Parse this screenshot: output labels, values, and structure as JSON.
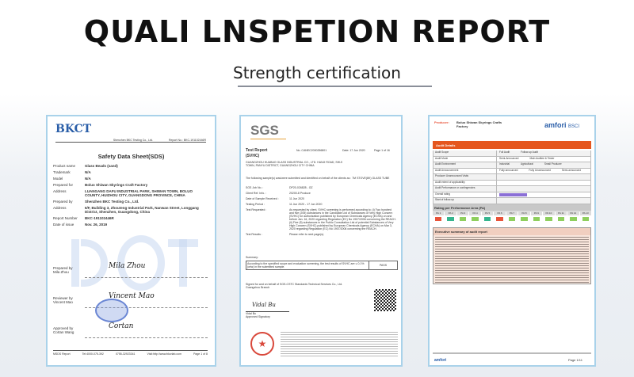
{
  "title": "QUALI LNSPETION REPORT",
  "subtitle": "Strength certification",
  "sds": {
    "logo": "BKCT",
    "header_company": "Shenzhen BKC Testing Co., Ltd.",
    "header_report": "Report No.: BKC-191102446R",
    "doc_title": "Safety Data Sheet(SDS)",
    "fields": [
      {
        "k": "Product name",
        "v": "Glass Beads (sand)"
      },
      {
        "k": "Trademark",
        "v": "N/A"
      },
      {
        "k": "Model",
        "v": "N/A"
      },
      {
        "k": "Prepared for",
        "v": "Boluo Shiwan Skyrings Craft Factory"
      },
      {
        "k": "Address",
        "v": "LUANGANG DAFU INDUSTRIAL PARK, SHIWAN TOWN, BOLUO COUNTY, HUIZHOU CITY, GUANGDONG PROVINCE, CHINA"
      },
      {
        "k": "Prepared by",
        "v": "Shenzhen BKC Testing Co., Ltd."
      },
      {
        "k": "Address",
        "v": "6/F, Building 3, Zhouteng Industrial Park, Nanwan Street, Longgang District, Shenzhen, Guangdong, China"
      },
      {
        "k": "Report Number",
        "v": "BKC-191102446R"
      },
      {
        "k": "Date of issue",
        "v": "Nov. 26, 2019"
      }
    ],
    "signers": [
      {
        "role": "Prepared by",
        "name": "Mila Zhou",
        "sig": "Mila Zhou"
      },
      {
        "role": "Reviewer by",
        "name": "Vincent Mao",
        "sig": "Vincent Mao"
      },
      {
        "role": "Approved by",
        "name": "Cortan Wang",
        "sig": "Cortan"
      }
    ],
    "footer": [
      "MSDS Report",
      "Tel:4000-075-392",
      "0755-32923341",
      "Visit:http://www.bkcrlab.com",
      "Page 1 of 8"
    ]
  },
  "sgs": {
    "logo": "SGS",
    "title1": "Test Report",
    "title2": "(SVHC)",
    "no": "No. CANEC2000256801",
    "date": "Date: 17 Jun 2020",
    "page": "Page 1 of 16",
    "client": "GUANGZHOU HUABAO GLASS INDUSTRIAL CO., LTD. HANJI ROAD, SHIJI TOWN, PANYU DISTRICT, GUANGZHOU CITY CHINA",
    "intro": "The following sample(s) was/were submitted and identified on behalf of the clients as : 7M STOVE(8K) GLASS TUBE",
    "fields": [
      {
        "k": "SGS Job No. :",
        "v": "DP20-026828 - GZ"
      },
      {
        "k": "Client Ref. Info. :",
        "v": "20200-8 Produce"
      },
      {
        "k": "Date of Sample Received :",
        "v": "11 Jun 2020"
      },
      {
        "k": "Testing Period :",
        "v": "11 Jun 2020 - 17 Jun 2020"
      },
      {
        "k": "Test Requested :",
        "v": "As requested by client, SVHC screening is performed according to: (i) Two hundred and five (205) substances in the Candidate List of Substances of Very High Concern (SVHC) for authorization published by European Chemicals Agency (ECHA) on and before Jan. 16, 2020 regarding Regulation (EC) No 1907/2006 concerning the REACH. (ii) Five (5) substances in the Public Consultation List of potential Substances of Very High Concern (SVHC) published by European Chemicals Agency (ECHA) on Mar 3, 2020 regarding Regulation (EC) No 1907/2006 concerning the REACH."
      },
      {
        "k": "Test Results :",
        "v": "Please refer to next page(s)."
      }
    ],
    "summary_label": "Summary:",
    "summary_text": "According to the specified scope and evaluation screening, the test results of SVHC are ≤ 0.1% (w/w) in the submitted sample.",
    "summary_result": "PASS",
    "signed": "Signed for and on behalf of SGS-CSTC Standards Technical Services Co., Ltd. Guangzhou Branch",
    "signer": "Vidal Bu",
    "signer_title": "Approved Signatory"
  },
  "amfori": {
    "producer_label": "Producer:",
    "producer": "Boluo Shiwan Skyrings Crafts Factory",
    "logo": "amfori",
    "logo2": "BSCI",
    "section": "Audit Details",
    "rows": [
      "Audit Scope",
      "Audit Mode",
      "Audit Environment",
      "Audit Announcement",
      "Producer Unannounced Visits",
      "Audit extent of applicability",
      "Audit Performance or contingencies",
      "Overall rating",
      "Start of follow-up"
    ],
    "options": [
      "Full Audit",
      "Follow-up Audit",
      "Semi-Announced",
      "Main Auditee & Tester",
      "Industrial",
      "Agricultural",
      "Small Producer",
      "Fully announced",
      "Fully Unannounced",
      "Semi-announced"
    ],
    "rating_title": "Rating per Performance Area (PA)",
    "pa": [
      "PA 1",
      "PA 2",
      "PA 3",
      "PA 4",
      "PA 5",
      "PA 6",
      "PA 7",
      "PA 8",
      "PA 9",
      "PA 10",
      "PA 11",
      "PA 12",
      "PA 13"
    ],
    "pa_colors": [
      "#e8543a",
      "#36b58f",
      "#8fcf5e",
      "#8fcf5e",
      "#36b58f",
      "#e8543a",
      "#8fcf5e",
      "#8fcf5e",
      "#8fcf5e",
      "#8fcf5e",
      "#8fcf5e",
      "#8fcf5e",
      "#8fcf5e"
    ],
    "summary_title": "Executive summary of audit report",
    "footer_page": "Page 1/11"
  }
}
